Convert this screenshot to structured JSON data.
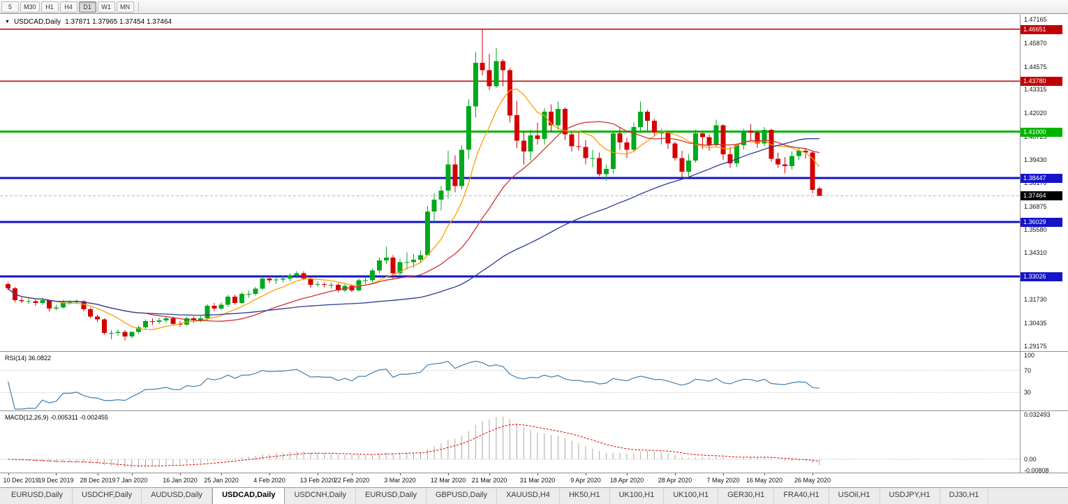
{
  "toolbar": {
    "timeframes": [
      "5",
      "M30",
      "H1",
      "H4",
      "D1",
      "W1",
      "MN"
    ],
    "active": "D1"
  },
  "chart": {
    "symbol": "USDCAD,Daily",
    "ohlc": "1.37871 1.37965 1.37454 1.37464",
    "dropdown_icon": "▼",
    "axis_labels": [
      {
        "t": "1.47165",
        "p": 1.47165
      },
      {
        "t": "1.45870",
        "p": 1.4587
      },
      {
        "t": "1.44575",
        "p": 1.44575
      },
      {
        "t": "1.43315",
        "p": 1.43315
      },
      {
        "t": "1.42020",
        "p": 1.4202
      },
      {
        "t": "1.40725",
        "p": 1.40725
      },
      {
        "t": "1.39430",
        "p": 1.3943
      },
      {
        "t": "1.38170",
        "p": 1.3817
      },
      {
        "t": "1.36875",
        "p": 1.36875
      },
      {
        "t": "1.35580",
        "p": 1.3558
      },
      {
        "t": "1.34310",
        "p": 1.3431
      },
      {
        "t": "1.31730",
        "p": 1.3173
      },
      {
        "t": "1.30435",
        "p": 1.30435
      },
      {
        "t": "1.29175",
        "p": 1.29175
      }
    ],
    "hlines": [
      {
        "price": 1.46651,
        "label": "1.46651",
        "color": "#c00000",
        "width": 1.5
      },
      {
        "price": 1.4378,
        "label": "1.43780",
        "color": "#c00000",
        "width": 1.5
      },
      {
        "price": 1.41,
        "label": "1.41000",
        "color": "#00b400",
        "width": 3
      },
      {
        "price": 1.38447,
        "label": "1.38447",
        "color": "#1414c8",
        "width": 3
      },
      {
        "price": 1.36029,
        "label": "1.36029",
        "color": "#1414c8",
        "width": 3
      },
      {
        "price": 1.33026,
        "label": "1.33026",
        "color": "#1414c8",
        "width": 3
      }
    ],
    "bid": {
      "price": 1.37464,
      "label": "1.37464",
      "color": "#000000"
    },
    "dates": [
      [
        "10 Dec 2019",
        0
      ],
      [
        "19 Dec 2019",
        7
      ],
      [
        "28 Dec 2019",
        13
      ],
      [
        "7 Jan 2020",
        18
      ],
      [
        "16 Jan 2020",
        25
      ],
      [
        "25 Jan 2020",
        31
      ],
      [
        "4 Feb 2020",
        38
      ],
      [
        "13 Feb 2020",
        45
      ],
      [
        "22 Feb 2020",
        50
      ],
      [
        "3 Mar 2020",
        57
      ],
      [
        "12 Mar 2020",
        64
      ],
      [
        "21 Mar 2020",
        70
      ],
      [
        "31 Mar 2020",
        77
      ],
      [
        "9 Apr 2020",
        84
      ],
      [
        "18 Apr 2020",
        90
      ],
      [
        "28 Apr 2020",
        97
      ],
      [
        "7 May 2020",
        104
      ],
      [
        "16 May 2020",
        110
      ],
      [
        "26 May 2020",
        117
      ]
    ]
  },
  "rsi": {
    "title": "RSI(14) 36.0822",
    "color": "#4080b0",
    "levels": [
      70,
      30
    ],
    "labels": [
      {
        "t": "100",
        "v": 100
      },
      {
        "t": "70",
        "v": 70
      },
      {
        "t": "30",
        "v": 30
      }
    ]
  },
  "macd": {
    "title": "MACD(12,26,9) -0.005311 -0.002455",
    "histogram_color": "#a8a8a8",
    "signal_color": "#e00000",
    "range": [
      -0.00808,
      0.032493
    ],
    "labels": [
      {
        "t": "0.032493",
        "v": 0.032493
      },
      {
        "t": "0.00",
        "v": 0
      },
      {
        "t": "-0.00808",
        "v": -0.00808
      }
    ]
  },
  "tabs": {
    "active_index": 3,
    "items": [
      "EURUSD,Daily",
      "USDCHF,Daily",
      "AUDUSD,Daily",
      "USDCAD,Daily",
      "USDCNH,Daily",
      "EURUSD,Daily",
      "GBPUSD,Daily",
      "XAUUSD,H4",
      "HK50,H1",
      "UK100,H1",
      "UK100,H1",
      "GER30,H1",
      "FRA40,H1",
      "USOil,H1",
      "USDJPY,H1",
      "DJ30,H1"
    ]
  },
  "chart_data": {
    "type": "candlestick",
    "symbol": "USDCAD",
    "timeframe": "Daily",
    "title": "USDCAD,Daily",
    "ylim": [
      1.289,
      1.4745
    ],
    "levels": [
      1.46651,
      1.4378,
      1.41,
      1.38447,
      1.36029,
      1.33026
    ],
    "colors": {
      "up": "#00a81e",
      "down": "#d40000"
    },
    "overlays": [
      {
        "name": "ma-fast",
        "type": "sma",
        "period": 8,
        "color": "#ff9d00"
      },
      {
        "name": "ma-medium",
        "type": "sma",
        "period": 21,
        "color": "#cc3333"
      },
      {
        "name": "ma-slow",
        "type": "sma",
        "period": 55,
        "color": "#2c3a92"
      }
    ],
    "indicators": [
      {
        "name": "RSI",
        "period": 14,
        "current": 36.0822,
        "scale": [
          0,
          100
        ],
        "levels": [
          70,
          30
        ]
      },
      {
        "name": "MACD",
        "fast": 12,
        "slow": 26,
        "signal": 9,
        "current_macd": -0.005311,
        "current_signal": -0.002455,
        "scale": [
          -0.00808,
          0.032493
        ]
      }
    ],
    "candles": [
      [
        1.326,
        1.327,
        1.3225,
        1.3236
      ],
      [
        1.3236,
        1.3245,
        1.316,
        1.3171
      ],
      [
        1.3171,
        1.3185,
        1.3155,
        1.3165
      ],
      [
        1.3165,
        1.318,
        1.315,
        1.3166
      ],
      [
        1.3166,
        1.3175,
        1.314,
        1.3155
      ],
      [
        1.3155,
        1.3185,
        1.3145,
        1.317
      ],
      [
        1.317,
        1.3175,
        1.311,
        1.3125
      ],
      [
        1.3125,
        1.3145,
        1.3115,
        1.313
      ],
      [
        1.313,
        1.317,
        1.3125,
        1.316
      ],
      [
        1.316,
        1.317,
        1.3145,
        1.316
      ],
      [
        1.316,
        1.3175,
        1.315,
        1.3165
      ],
      [
        1.3165,
        1.317,
        1.311,
        1.312
      ],
      [
        1.312,
        1.313,
        1.307,
        1.308
      ],
      [
        1.308,
        1.309,
        1.305,
        1.3065
      ],
      [
        1.3065,
        1.307,
        1.298,
        1.299
      ],
      [
        1.299,
        1.3005,
        1.2955,
        1.299
      ],
      [
        1.299,
        1.301,
        1.2975,
        1.2995
      ],
      [
        1.2995,
        1.3005,
        1.295,
        1.297
      ],
      [
        1.297,
        1.3,
        1.296,
        1.2995
      ],
      [
        1.2995,
        1.303,
        1.2985,
        1.302
      ],
      [
        1.302,
        1.3065,
        1.301,
        1.3055
      ],
      [
        1.3055,
        1.307,
        1.3035,
        1.3052
      ],
      [
        1.3052,
        1.3075,
        1.304,
        1.306
      ],
      [
        1.306,
        1.308,
        1.3045,
        1.307
      ],
      [
        1.307,
        1.308,
        1.303,
        1.304
      ],
      [
        1.304,
        1.3055,
        1.3025,
        1.3037
      ],
      [
        1.3037,
        1.308,
        1.303,
        1.307
      ],
      [
        1.307,
        1.308,
        1.3045,
        1.306
      ],
      [
        1.306,
        1.3085,
        1.305,
        1.307
      ],
      [
        1.307,
        1.315,
        1.306,
        1.314
      ],
      [
        1.314,
        1.3155,
        1.311,
        1.3125
      ],
      [
        1.3125,
        1.316,
        1.3115,
        1.3145
      ],
      [
        1.3145,
        1.32,
        1.3135,
        1.319
      ],
      [
        1.319,
        1.32,
        1.3145,
        1.3155
      ],
      [
        1.3155,
        1.3215,
        1.315,
        1.3205
      ],
      [
        1.3205,
        1.3225,
        1.3185,
        1.3205
      ],
      [
        1.3205,
        1.3245,
        1.3195,
        1.3235
      ],
      [
        1.3235,
        1.33,
        1.3225,
        1.329
      ],
      [
        1.329,
        1.3305,
        1.3265,
        1.328
      ],
      [
        1.328,
        1.33,
        1.326,
        1.3285
      ],
      [
        1.3285,
        1.3305,
        1.327,
        1.329
      ],
      [
        1.329,
        1.332,
        1.3275,
        1.3305
      ],
      [
        1.3305,
        1.333,
        1.329,
        1.332
      ],
      [
        1.332,
        1.333,
        1.328,
        1.329
      ],
      [
        1.329,
        1.33,
        1.324,
        1.3255
      ],
      [
        1.3255,
        1.3275,
        1.3245,
        1.326
      ],
      [
        1.326,
        1.327,
        1.324,
        1.3255
      ],
      [
        1.3255,
        1.327,
        1.3235,
        1.3255
      ],
      [
        1.3255,
        1.3265,
        1.3215,
        1.3225
      ],
      [
        1.3225,
        1.326,
        1.3215,
        1.325
      ],
      [
        1.325,
        1.326,
        1.3215,
        1.3225
      ],
      [
        1.3225,
        1.329,
        1.322,
        1.328
      ],
      [
        1.328,
        1.33,
        1.326,
        1.328
      ],
      [
        1.328,
        1.3345,
        1.327,
        1.3335
      ],
      [
        1.3335,
        1.3405,
        1.332,
        1.339
      ],
      [
        1.339,
        1.3465,
        1.337,
        1.3405
      ],
      [
        1.3405,
        1.342,
        1.329,
        1.332
      ],
      [
        1.332,
        1.34,
        1.331,
        1.338
      ],
      [
        1.338,
        1.3435,
        1.334,
        1.338
      ],
      [
        1.338,
        1.3425,
        1.335,
        1.3395
      ],
      [
        1.3395,
        1.3445,
        1.338,
        1.342
      ],
      [
        1.342,
        1.369,
        1.3415,
        1.366
      ],
      [
        1.366,
        1.376,
        1.36,
        1.3725
      ],
      [
        1.3725,
        1.38,
        1.3665,
        1.3775
      ],
      [
        1.3775,
        1.3995,
        1.373,
        1.392
      ],
      [
        1.392,
        1.397,
        1.3765,
        1.38
      ],
      [
        1.38,
        1.4025,
        1.378,
        1.4
      ],
      [
        1.4,
        1.428,
        1.395,
        1.424
      ],
      [
        1.424,
        1.454,
        1.418,
        1.448
      ],
      [
        1.448,
        1.4668,
        1.441,
        1.444
      ],
      [
        1.444,
        1.453,
        1.433,
        1.435
      ],
      [
        1.435,
        1.456,
        1.434,
        1.449
      ],
      [
        1.449,
        1.45,
        1.435,
        1.444
      ],
      [
        1.444,
        1.445,
        1.415,
        1.419
      ],
      [
        1.419,
        1.427,
        1.401,
        1.405
      ],
      [
        1.405,
        1.41,
        1.392,
        1.399
      ],
      [
        1.399,
        1.411,
        1.394,
        1.408
      ],
      [
        1.408,
        1.415,
        1.403,
        1.406
      ],
      [
        1.406,
        1.423,
        1.403,
        1.421
      ],
      [
        1.421,
        1.425,
        1.41,
        1.4135
      ],
      [
        1.4135,
        1.4265,
        1.411,
        1.4225
      ],
      [
        1.4225,
        1.4235,
        1.4055,
        1.4085
      ],
      [
        1.4085,
        1.4105,
        1.399,
        1.402
      ],
      [
        1.402,
        1.4095,
        1.3995,
        1.4015
      ],
      [
        1.4015,
        1.4055,
        1.392,
        1.3955
      ],
      [
        1.3955,
        1.4,
        1.3905,
        1.3955
      ],
      [
        1.3955,
        1.3985,
        1.3855,
        1.3865
      ],
      [
        1.3865,
        1.392,
        1.383,
        1.3895
      ],
      [
        1.3895,
        1.4105,
        1.387,
        1.409
      ],
      [
        1.409,
        1.4125,
        1.4,
        1.404
      ],
      [
        1.404,
        1.4065,
        1.3955,
        1.4
      ],
      [
        1.4,
        1.415,
        1.399,
        1.4125
      ],
      [
        1.4125,
        1.4265,
        1.4105,
        1.421
      ],
      [
        1.421,
        1.422,
        1.4105,
        1.416
      ],
      [
        1.416,
        1.417,
        1.408,
        1.4095
      ],
      [
        1.4095,
        1.4115,
        1.403,
        1.4095
      ],
      [
        1.4095,
        1.4105,
        1.4005,
        1.4035
      ],
      [
        1.4035,
        1.4045,
        1.394,
        1.3955
      ],
      [
        1.3955,
        1.3995,
        1.385,
        1.388
      ],
      [
        1.388,
        1.3975,
        1.3855,
        1.394
      ],
      [
        1.394,
        1.411,
        1.393,
        1.409
      ],
      [
        1.409,
        1.4095,
        1.4005,
        1.407
      ],
      [
        1.407,
        1.4085,
        1.3995,
        1.4025
      ],
      [
        1.4025,
        1.4165,
        1.4015,
        1.4135
      ],
      [
        1.4135,
        1.414,
        1.3945,
        1.3975
      ],
      [
        1.3975,
        1.4015,
        1.39,
        1.3925
      ],
      [
        1.3925,
        1.4035,
        1.3905,
        1.4025
      ],
      [
        1.4025,
        1.4115,
        1.4,
        1.4105
      ],
      [
        1.4105,
        1.414,
        1.4055,
        1.4095
      ],
      [
        1.4095,
        1.4105,
        1.401,
        1.4035
      ],
      [
        1.4035,
        1.4125,
        1.402,
        1.411
      ],
      [
        1.411,
        1.4115,
        1.3935,
        1.395
      ],
      [
        1.395,
        1.3985,
        1.39,
        1.392
      ],
      [
        1.392,
        1.396,
        1.387,
        1.391
      ],
      [
        1.391,
        1.399,
        1.389,
        1.3965
      ],
      [
        1.3965,
        1.401,
        1.3945,
        1.3995
      ],
      [
        1.3995,
        1.401,
        1.395,
        1.3985
      ],
      [
        1.3985,
        1.399,
        1.376,
        1.378
      ],
      [
        1.37871,
        1.37965,
        1.37454,
        1.37464
      ]
    ]
  }
}
